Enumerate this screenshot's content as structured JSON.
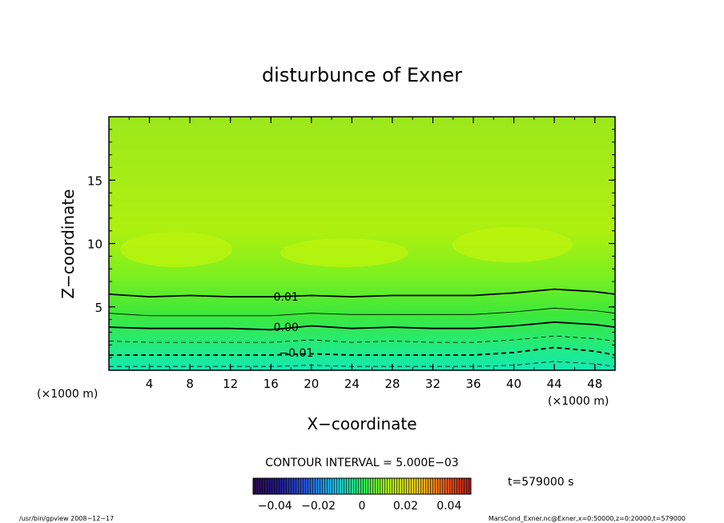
{
  "chart_data": {
    "type": "heatmap",
    "title": "disturbunce of Exner",
    "xlabel": "X−coordinate",
    "ylabel": "Z−coordinate",
    "x_unit": "(×1000 m)",
    "y_unit": "(×1000 m)",
    "xlim": [
      0,
      50
    ],
    "ylim": [
      0,
      20
    ],
    "x_ticks": [
      "4",
      "8",
      "12",
      "16",
      "20",
      "24",
      "28",
      "32",
      "36",
      "40",
      "44",
      "48"
    ],
    "y_ticks": [
      "5",
      "10",
      "15"
    ],
    "contour_interval_text": "CONTOUR INTERVAL = 5.000E−03",
    "contour_labels": [
      {
        "text": "0.01",
        "x": 17.5,
        "z": 5.8
      },
      {
        "text": "0.00",
        "x": 17.5,
        "z": 3.4
      },
      {
        "text": "−0.01",
        "x": 18.5,
        "z": 1.4
      }
    ],
    "contours": [
      {
        "level": 0.01,
        "style": "solid",
        "weight": "bold",
        "x": [
          0,
          4,
          8,
          12,
          16,
          20,
          24,
          28,
          32,
          36,
          40,
          44,
          48,
          50
        ],
        "z": [
          6.0,
          5.8,
          5.9,
          5.8,
          5.8,
          5.9,
          5.8,
          5.9,
          5.9,
          5.9,
          6.1,
          6.4,
          6.2,
          6.0
        ]
      },
      {
        "level": 0.005,
        "style": "solid",
        "weight": "thin",
        "x": [
          0,
          4,
          8,
          12,
          16,
          20,
          24,
          28,
          32,
          36,
          40,
          44,
          48,
          50
        ],
        "z": [
          4.5,
          4.3,
          4.3,
          4.3,
          4.3,
          4.5,
          4.4,
          4.4,
          4.4,
          4.4,
          4.6,
          4.9,
          4.7,
          4.5
        ]
      },
      {
        "level": 0.0,
        "style": "solid",
        "weight": "bold",
        "x": [
          0,
          4,
          8,
          12,
          16,
          20,
          24,
          28,
          32,
          36,
          40,
          44,
          48,
          50
        ],
        "z": [
          3.4,
          3.3,
          3.3,
          3.3,
          3.2,
          3.5,
          3.3,
          3.4,
          3.3,
          3.3,
          3.5,
          3.8,
          3.6,
          3.4
        ]
      },
      {
        "level": -0.005,
        "style": "dashed",
        "weight": "thin",
        "x": [
          0,
          4,
          8,
          12,
          16,
          20,
          24,
          28,
          32,
          36,
          40,
          44,
          48,
          50
        ],
        "z": [
          2.3,
          2.2,
          2.2,
          2.2,
          2.2,
          2.4,
          2.2,
          2.3,
          2.2,
          2.2,
          2.4,
          2.7,
          2.5,
          2.3
        ]
      },
      {
        "level": -0.01,
        "style": "dashed",
        "weight": "bold",
        "x": [
          0,
          4,
          8,
          12,
          16,
          20,
          24,
          28,
          32,
          36,
          40,
          44,
          48,
          50
        ],
        "z": [
          1.2,
          1.2,
          1.2,
          1.2,
          1.2,
          1.3,
          1.2,
          1.2,
          1.2,
          1.2,
          1.4,
          1.8,
          1.5,
          1.2
        ]
      },
      {
        "level": -0.015,
        "style": "dashed",
        "weight": "thin",
        "x": [
          0,
          4,
          8,
          12,
          16,
          20,
          24,
          28,
          32,
          36,
          40,
          44,
          48,
          50
        ],
        "z": [
          0.3,
          0.3,
          0.3,
          0.3,
          0.3,
          0.4,
          0.3,
          0.3,
          0.3,
          0.3,
          0.4,
          0.7,
          0.5,
          0.3
        ]
      }
    ],
    "colorbar": {
      "min": -0.05,
      "max": 0.05,
      "tick_labels": [
        "−0.04",
        "−0.02",
        "0",
        "0.02",
        "0.04"
      ],
      "tick_values": [
        -0.04,
        -0.02,
        0,
        0.02,
        0.04
      ]
    },
    "time_label": "t=579000 s",
    "footer_left": "/usr/bin/gpview   2008−12−17",
    "footer_right": "MarsCond_Exner.nc@Exner,x=0:50000,z=0:20000,t=579000",
    "colors": {
      "top": "#9ce81c",
      "mid_bright": "#bcf40e",
      "low": "#3cea3a",
      "bottom": "#14eab0"
    }
  }
}
